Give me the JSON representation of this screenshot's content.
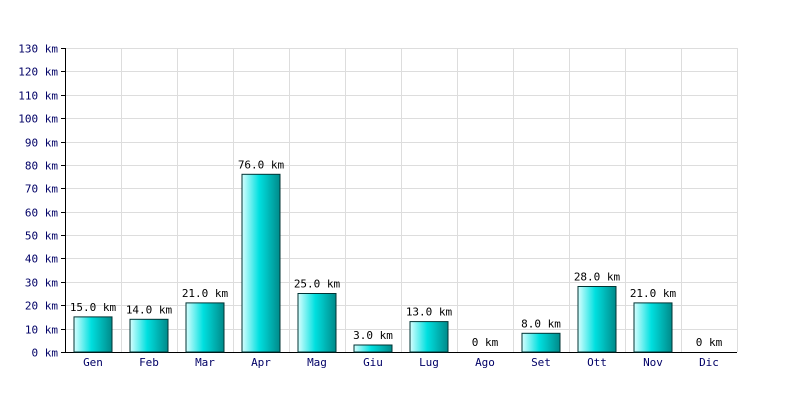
{
  "chart_data": {
    "type": "bar",
    "categories": [
      "Gen",
      "Feb",
      "Mar",
      "Apr",
      "Mag",
      "Giu",
      "Lug",
      "Ago",
      "Set",
      "Ott",
      "Nov",
      "Dic"
    ],
    "values": [
      15.0,
      14.0,
      21.0,
      76.0,
      25.0,
      3.0,
      13.0,
      0,
      8.0,
      28.0,
      21.0,
      0
    ],
    "value_labels": [
      "15.0 km",
      "14.0 km",
      "21.0 km",
      "76.0 km",
      "25.0 km",
      "3.0 km",
      "13.0 km",
      "0 km",
      "8.0 km",
      "28.0 km",
      "21.0 km",
      "0 km"
    ],
    "ylim": [
      0,
      130
    ],
    "yticks": [
      0,
      10,
      20,
      30,
      40,
      50,
      60,
      70,
      80,
      90,
      100,
      110,
      120,
      130
    ],
    "ytick_labels": [
      "0 km",
      "10 km",
      "20 km",
      "30 km",
      "40 km",
      "50 km",
      "60 km",
      "70 km",
      "80 km",
      "90 km",
      "100 km",
      "110 km",
      "120 km",
      "130 km"
    ],
    "grid": true,
    "colors": {
      "bar_light": "#d8ffff",
      "bar_mid": "#00e0e0",
      "bar_dark": "#008a8a",
      "bar_stroke": "#003333",
      "grid": "#dddddd",
      "axis": "#000000",
      "axis_text": "#000066",
      "label_text": "#000000"
    }
  }
}
